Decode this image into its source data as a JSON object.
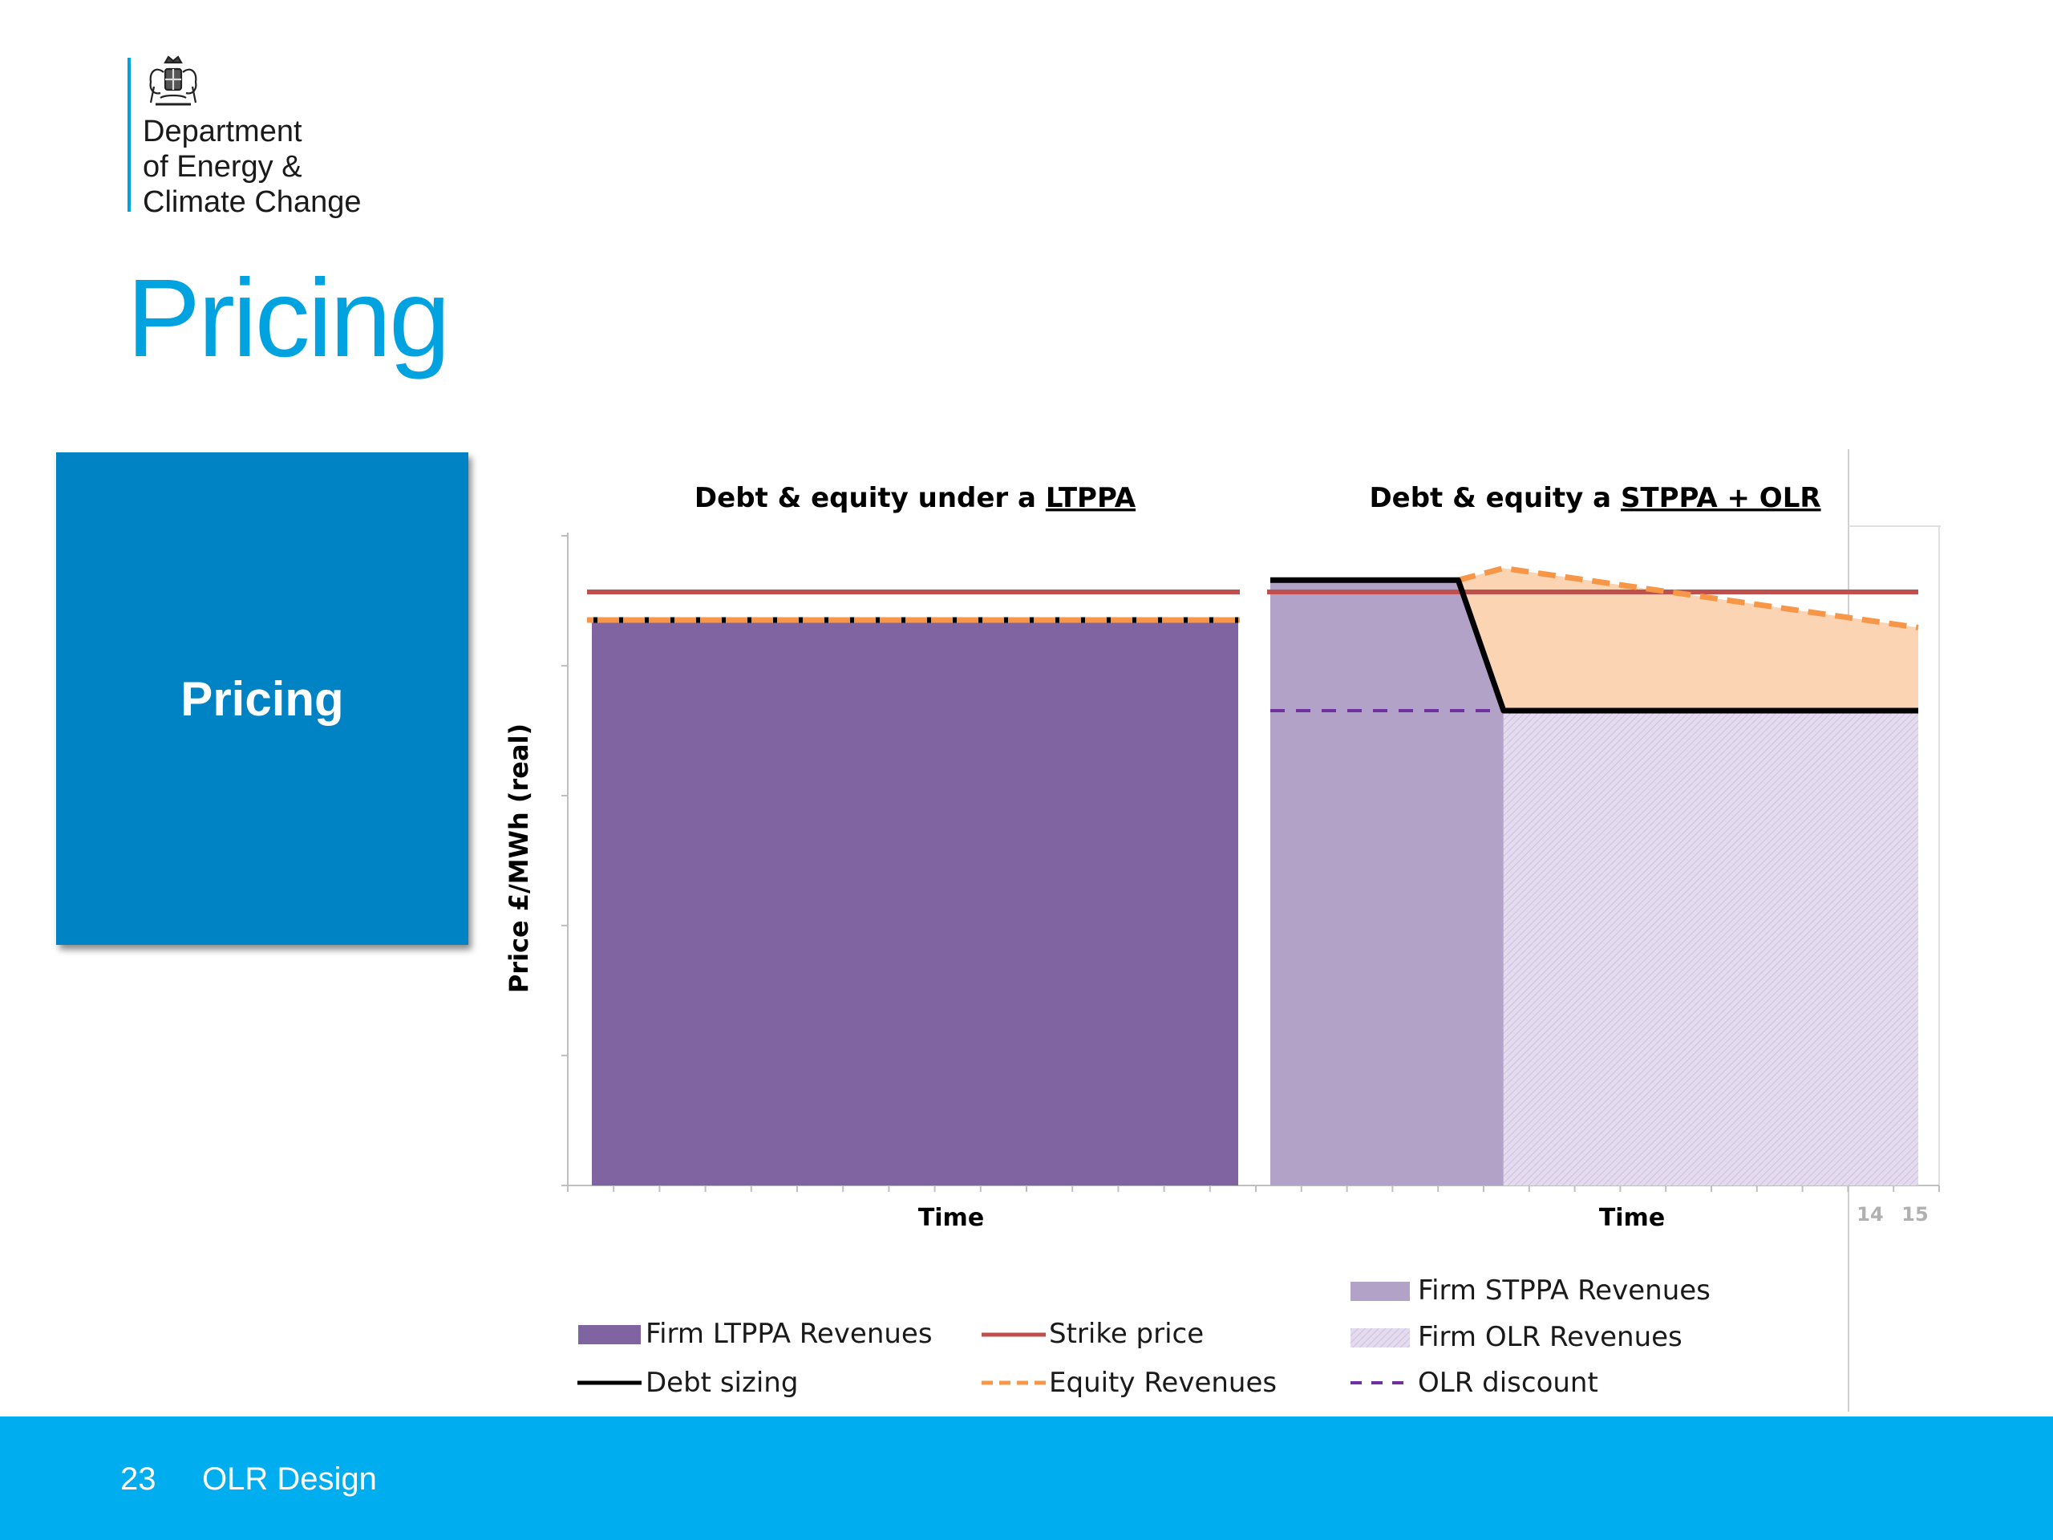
{
  "header": {
    "logo_lines": [
      "Department",
      "of Energy &",
      "Climate Change"
    ],
    "title": "Pricing"
  },
  "section_box": {
    "label": "Pricing",
    "color": "#0083c5"
  },
  "footer": {
    "page_number": "23",
    "label": "OLR Design",
    "color": "#00aeef"
  },
  "chart_data": [
    {
      "type": "area",
      "title_prefix": "Debt & equity under a ",
      "title_underlined": "LTPPA",
      "xlabel": "Time",
      "ylabel": "Price £/MWh (real)",
      "x": [
        0,
        1
      ],
      "strike_price": [
        1,
        1
      ],
      "firm_ltppa_revenues": [
        0.95,
        0.95
      ],
      "debt_sizing": [
        0.95,
        0.95
      ],
      "equity_revenues": [
        0.95,
        0.95
      ]
    },
    {
      "type": "area",
      "title_prefix": "Debt & equity  a ",
      "title_underlined": "STPPA + OLR",
      "xlabel": "Time",
      "extra_tick_labels": [
        "14",
        "15"
      ],
      "x": [
        0,
        0.29,
        0.36,
        1
      ],
      "strike_price": [
        1,
        1,
        1,
        1
      ],
      "firm_stppa_revenues": {
        "x": [
          0,
          0.36
        ],
        "y": [
          1.02,
          1.02
        ]
      },
      "debt_sizing": [
        1.02,
        1.02,
        0.8,
        0.8
      ],
      "equity_revenues": {
        "x": [
          0.29,
          0.36,
          1
        ],
        "y": [
          1.02,
          1.04,
          0.94
        ]
      },
      "firm_olr_revenues": {
        "x": [
          0.36,
          1
        ],
        "y": [
          0.8,
          0.8
        ]
      },
      "olr_discount": {
        "x": [
          0,
          0.36
        ],
        "y": [
          0.8,
          0.8
        ]
      }
    }
  ],
  "legend": {
    "items": [
      {
        "key": "firm_ltppa",
        "label": "Firm LTPPA Revenues",
        "color": "#8064a2"
      },
      {
        "key": "strike",
        "label": "Strike price",
        "color": "#c0504d"
      },
      {
        "key": "debt",
        "label": "Debt sizing",
        "color": "#000000"
      },
      {
        "key": "equity",
        "label": "Equity Revenues",
        "color": "#f79646"
      },
      {
        "key": "firm_stppa",
        "label": "Firm STPPA Revenues",
        "color": "#b3a2c7"
      },
      {
        "key": "firm_olr",
        "label": "Firm OLR Revenues",
        "color": "#d9d0e6"
      },
      {
        "key": "olr_discount",
        "label": "OLR discount",
        "color": "#7030a0"
      }
    ]
  },
  "colors": {
    "strike": "#c0504d",
    "firm_ltppa": "#8064a2",
    "firm_stppa": "#b3a2c7",
    "firm_olr": "#e4dcee",
    "equity_fill": "#fbd4b4",
    "equity_line": "#f79646",
    "olr_discount": "#7030a0"
  }
}
